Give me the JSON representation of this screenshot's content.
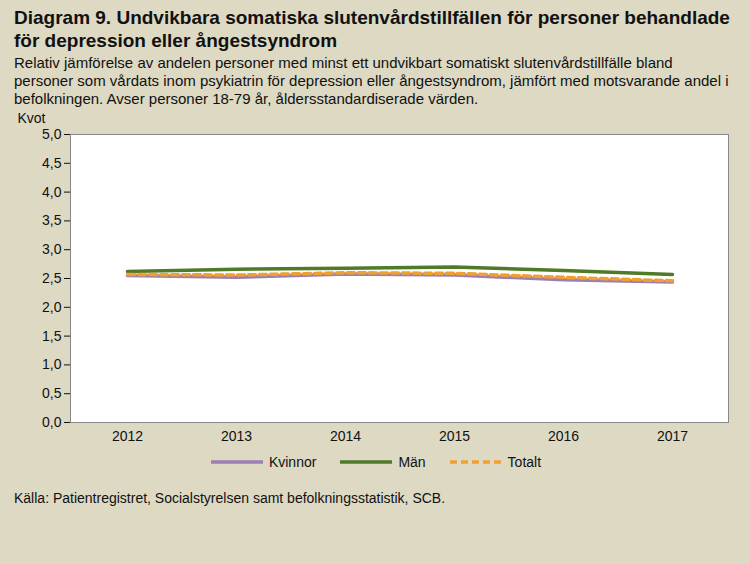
{
  "chart_data": {
    "type": "line",
    "title": "Diagram 9. Undvikbara somatiska slutenvårdstillfällen för personer behandlade för depression eller ångestsyndrom",
    "subtitle": "Relativ jämförelse av andelen personer med minst ett undvikbart somatiskt slutenvårdstillfälle bland personer som vårdats inom psykiatrin för depression eller ångestsyndrom, jämfört med motsvarande andel i befolkningen.  Avser personer 18-79 år, åldersstandardiserade värden.",
    "y_label": "Kvot",
    "source": "Källa: Patientregistret, Socialstyrelsen samt befolkningsstatistik, SCB.",
    "categories": [
      "2012",
      "2013",
      "2014",
      "2015",
      "2016",
      "2017"
    ],
    "series": [
      {
        "name": "Kvinnor",
        "color": "#9b7fb3",
        "line_style": "solid",
        "values": [
          2.55,
          2.52,
          2.58,
          2.56,
          2.48,
          2.44
        ]
      },
      {
        "name": "Män",
        "color": "#4f7a28",
        "line_style": "solid",
        "values": [
          2.62,
          2.66,
          2.68,
          2.7,
          2.64,
          2.57
        ]
      },
      {
        "name": "Totalt",
        "color": "#f0a030",
        "line_style": "dashed",
        "values": [
          2.57,
          2.56,
          2.6,
          2.59,
          2.52,
          2.46
        ]
      }
    ],
    "ylim": [
      0,
      5
    ],
    "yticks": [
      {
        "value": 0,
        "label": "0,0"
      },
      {
        "value": 0.5,
        "label": "0,5"
      },
      {
        "value": 1,
        "label": "1,0"
      },
      {
        "value": 1.5,
        "label": "1,5"
      },
      {
        "value": 2,
        "label": "2,0"
      },
      {
        "value": 2.5,
        "label": "2,5"
      },
      {
        "value": 3,
        "label": "3,0"
      },
      {
        "value": 3.5,
        "label": "3,5"
      },
      {
        "value": 4,
        "label": "4,0"
      },
      {
        "value": 4.5,
        "label": "4,5"
      },
      {
        "value": 5,
        "label": "5,0"
      }
    ],
    "grid": false,
    "legend": "bottom"
  }
}
